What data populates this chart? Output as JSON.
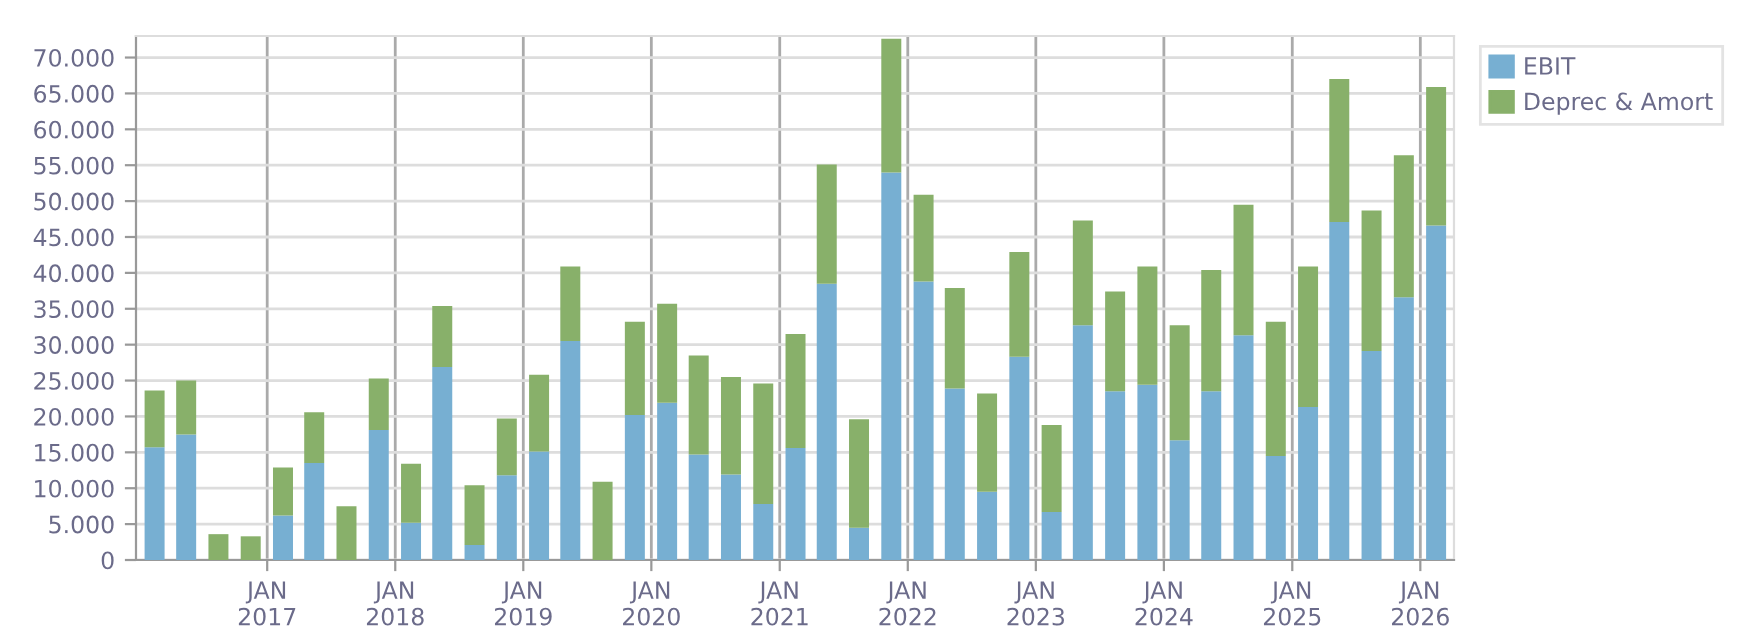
{
  "chart_data": {
    "type": "bar",
    "stacked": true,
    "x": [
      "2016-02-15",
      "2016-05-15",
      "2016-08-15",
      "2016-11-15",
      "2017-02-15",
      "2017-05-15",
      "2017-08-15",
      "2017-11-15",
      "2018-02-15",
      "2018-05-15",
      "2018-08-15",
      "2018-11-15",
      "2019-02-15",
      "2019-05-15",
      "2019-08-15",
      "2019-11-15",
      "2020-02-15",
      "2020-05-15",
      "2020-08-15",
      "2020-11-15",
      "2021-02-15",
      "2021-05-15",
      "2021-08-15",
      "2021-11-15",
      "2022-02-15",
      "2022-05-15",
      "2022-08-15",
      "2022-11-15",
      "2023-02-15",
      "2023-05-15",
      "2023-08-15",
      "2023-11-15",
      "2024-02-15",
      "2024-05-15",
      "2024-08-15",
      "2024-11-15",
      "2025-02-15",
      "2025-05-15",
      "2025-08-15",
      "2025-11-15",
      "2026-02-15"
    ],
    "series": [
      {
        "name": "EBIT",
        "color": "#77afd2",
        "values": [
          15700,
          17500,
          0,
          0,
          6200,
          13500,
          0,
          18100,
          5200,
          26900,
          2100,
          11800,
          15100,
          30500,
          0,
          20200,
          21900,
          14700,
          11900,
          7800,
          15600,
          38500,
          4500,
          54000,
          38800,
          23900,
          9500,
          28300,
          6700,
          32700,
          23500,
          24400,
          16700,
          23500,
          31300,
          14500,
          21300,
          47100,
          29100,
          36600,
          46600
        ]
      },
      {
        "name": "Deprec & Amort",
        "color": "#88b06a",
        "values": [
          7900,
          7500,
          3600,
          3300,
          6700,
          7100,
          7500,
          7200,
          8200,
          8500,
          8300,
          7900,
          10700,
          10400,
          10900,
          13000,
          13800,
          13800,
          13600,
          16800,
          15900,
          16600,
          15100,
          18600,
          12100,
          14000,
          13700,
          14600,
          12100,
          14600,
          13900,
          16500,
          16000,
          16900,
          18200,
          18700,
          19600,
          19900,
          19600,
          19800,
          19300
        ]
      }
    ],
    "xlim": [
      "2015-12-24",
      "2026-04-07"
    ],
    "xticks": [
      {
        "value": "2017-01-01",
        "label": "JAN\n2017"
      },
      {
        "value": "2018-01-01",
        "label": "JAN\n2018"
      },
      {
        "value": "2019-01-01",
        "label": "JAN\n2019"
      },
      {
        "value": "2020-01-01",
        "label": "JAN\n2020"
      },
      {
        "value": "2021-01-01",
        "label": "JAN\n2021"
      },
      {
        "value": "2022-01-01",
        "label": "JAN\n2022"
      },
      {
        "value": "2023-01-01",
        "label": "JAN\n2023"
      },
      {
        "value": "2024-01-01",
        "label": "JAN\n2024"
      },
      {
        "value": "2025-01-01",
        "label": "JAN\n2025"
      },
      {
        "value": "2026-01-01",
        "label": "JAN\n2026"
      }
    ],
    "ylim": [
      0,
      73000
    ],
    "yticks": [
      {
        "value": 0,
        "label": "0"
      },
      {
        "value": 5000,
        "label": "5.000"
      },
      {
        "value": 10000,
        "label": "10.000"
      },
      {
        "value": 15000,
        "label": "15.000"
      },
      {
        "value": 20000,
        "label": "20.000"
      },
      {
        "value": 25000,
        "label": "25.000"
      },
      {
        "value": 30000,
        "label": "30.000"
      },
      {
        "value": 35000,
        "label": "35.000"
      },
      {
        "value": 40000,
        "label": "40.000"
      },
      {
        "value": 45000,
        "label": "45.000"
      },
      {
        "value": 50000,
        "label": "50.000"
      },
      {
        "value": 55000,
        "label": "55.000"
      },
      {
        "value": 60000,
        "label": "60.000"
      },
      {
        "value": 65000,
        "label": "65.000"
      },
      {
        "value": 70000,
        "label": "70.000"
      }
    ],
    "grid": true,
    "legend": "top right"
  }
}
